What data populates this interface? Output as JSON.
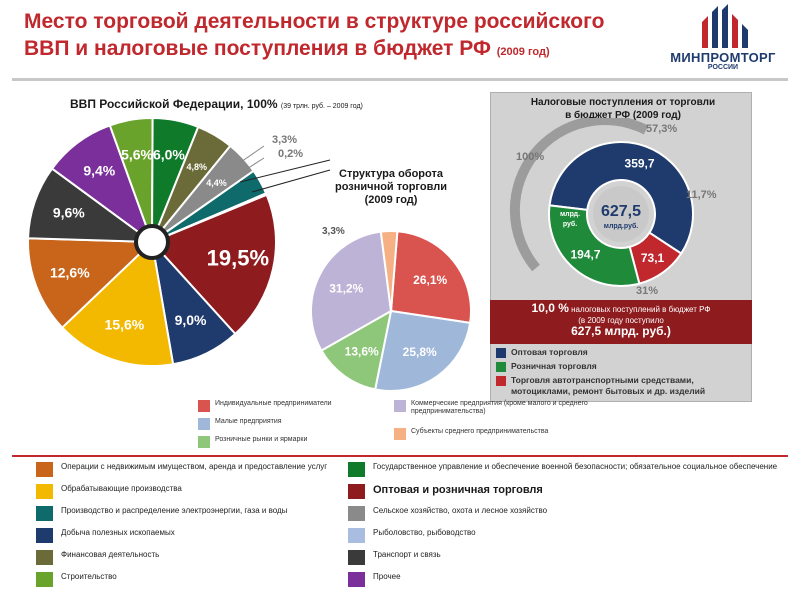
{
  "header": {
    "title_line1": "Место торговой деятельности в структуре российского",
    "title_line2": "ВВП и налоговые поступления в бюджет РФ",
    "title_year": "(2009 год)",
    "logo_text": "МИНПРОМТОРГ",
    "logo_sub": "РОССИИ"
  },
  "colors": {
    "title": "#c0282d",
    "gdp_trade": "#8e1b1e",
    "wholesale": "#1f3b6e",
    "retail": "#1f8a3a",
    "auto": "#c0282d"
  },
  "gdp_title": {
    "main": "ВВП Российской Федерации, 100%",
    "note": "(39 трлн. руб. – 2009 год)"
  },
  "retail_title": {
    "line1": "Структура оборота",
    "line2": "розничной торговли",
    "line3": "(2009 год)"
  },
  "tax": {
    "title_line1": "Налоговые поступления от торговли",
    "title_line2": "в бюджет РФ (2009 год)",
    "center_value": "627,5",
    "center_unit": "млрд.руб.",
    "side_unit_line1": "млрд.",
    "side_unit_line2": "руб.",
    "label_100": "100%",
    "label_573": "57,3%",
    "label_117": "11,7%",
    "label_31": "31%",
    "banner_big": "10,0 %",
    "banner_line1": "налоговых поступлений в бюджет РФ",
    "banner_line2": "(в 2009 году поступило",
    "banner_line3": "627,5 млрд. руб.)",
    "legend": [
      {
        "label": "Оптовая торговля",
        "color": "#1f3b6e"
      },
      {
        "label": "Розничная торговля",
        "color": "#1f8a3a"
      },
      {
        "label": "Торговля автотранспортными средствами, мотоциклами, ремонт бытовых и др. изделий",
        "color": "#c0282d"
      }
    ]
  },
  "retail_legend": [
    {
      "label": "Индивидуальные предприниматели",
      "color": "#d9534f"
    },
    {
      "label": "Малые предприятия",
      "color": "#9fb7d9"
    },
    {
      "label": "Розничные рынки и ярмарки",
      "color": "#8fc77a"
    },
    {
      "label": "Коммерческие предприятия (кроме малого и среднего предпринимательства)",
      "color": "#bdb3d6"
    },
    {
      "label": "Субъекты среднего предпринимательства",
      "color": "#f5b183"
    }
  ],
  "sector_legend": [
    {
      "label": "Операции с недвижимым имуществом, аренда и предоставление услуг",
      "color": "#c8651b"
    },
    {
      "label": "Обрабатывающие производства",
      "color": "#f3b800"
    },
    {
      "label": "Производство и распределение электроэнергии, газа и воды",
      "color": "#0f6b6b"
    },
    {
      "label": "Добыча полезных ископаемых",
      "color": "#1f3b6e"
    },
    {
      "label": "Финансовая деятельность",
      "color": "#6b6b3a"
    },
    {
      "label": "Строительство",
      "color": "#6aa32b"
    },
    {
      "label": "Государственное управление и обеспечение военной безопасности; обязательное социальное обеспечение",
      "color": "#0f7a2a"
    },
    {
      "label": "Оптовая и розничная торговля",
      "color": "#8e1b1e"
    },
    {
      "label": "Сельское хозяйство, охота и лесное хозяйство",
      "color": "#8a8a8a"
    },
    {
      "label": "Рыболовство, рыбоводство",
      "color": "#a9bde0"
    },
    {
      "label": "Транспорт и связь",
      "color": "#3a3a3a"
    },
    {
      "label": "Прочее",
      "color": "#7a2f9a"
    }
  ],
  "chart_data": [
    {
      "type": "pie",
      "title": "ВВП Российской Федерации, 100%",
      "slices": [
        {
          "label": "19,5%",
          "value": 19.5,
          "sector": "Оптовая и розничная торговля",
          "color": "#8e1b1e"
        },
        {
          "label": "9,0%",
          "value": 9.0,
          "sector": "Добыча полезных ископаемых",
          "color": "#1f3b6e"
        },
        {
          "label": "15,6%",
          "value": 15.6,
          "sector": "Обрабатывающие производства",
          "color": "#f3b800"
        },
        {
          "label": "12,6%",
          "value": 12.6,
          "sector": "Операции с недвижимым имуществом, аренда и предоставление услуг",
          "color": "#c8651b"
        },
        {
          "label": "9,6%",
          "value": 9.6,
          "sector": "Транспорт и связь",
          "color": "#3a3a3a"
        },
        {
          "label": "9,4%",
          "value": 9.4,
          "sector": "Прочее",
          "color": "#7a2f9a"
        },
        {
          "label": "5,6%",
          "value": 5.6,
          "sector": "Строительство",
          "color": "#6aa32b"
        },
        {
          "label": "6,0%",
          "value": 6.0,
          "sector": "Государственное управление и обеспечение военной безопасности; обязательное социальное обеспечение",
          "color": "#0f7a2a"
        },
        {
          "label": "4,8%",
          "value": 4.8,
          "sector": "Финансовая деятельность",
          "color": "#6b6b3a"
        },
        {
          "label": "4,4%",
          "value": 4.4,
          "sector": "Сельское хозяйство, охота и лесное хозяйство",
          "color": "#8a8a8a"
        },
        {
          "label": "3,3%",
          "value": 3.3,
          "sector": "Производство и распределение электроэнергии, газа и воды",
          "color": "#0f6b6b"
        },
        {
          "label": "0,2%",
          "value": 0.2,
          "sector": "Рыболовство, рыбоводство",
          "color": "#a9bde0"
        }
      ]
    },
    {
      "type": "pie",
      "title": "Структура оборота розничной торговли (2009 год)",
      "slices": [
        {
          "label": "26,1%",
          "value": 26.1,
          "sector": "Индивидуальные предприниматели",
          "color": "#d9534f"
        },
        {
          "label": "25,8%",
          "value": 25.8,
          "sector": "Малые предприятия",
          "color": "#9fb7d9"
        },
        {
          "label": "13,6%",
          "value": 13.6,
          "sector": "Розничные рынки и ярмарки",
          "color": "#8fc77a"
        },
        {
          "label": "31,2%",
          "value": 31.2,
          "sector": "Коммерческие предприятия (кроме малого и среднего предпринимательства)",
          "color": "#bdb3d6"
        },
        {
          "label": "3,3%",
          "value": 3.3,
          "sector": "Субъекты среднего предпринимательства",
          "color": "#f5b183"
        }
      ]
    },
    {
      "type": "pie",
      "title": "Налоговые поступления от торговли в бюджет РФ (2009 год)",
      "unit": "млрд. руб.",
      "slices": [
        {
          "label": "359,7",
          "value": 359.7,
          "sector": "Оптовая торговля",
          "color": "#1f3b6e"
        },
        {
          "label": "73,1",
          "value": 73.1,
          "sector": "Торговля автотранспортными средствами, мотоциклами, ремонт бытовых и др. изделий",
          "color": "#c0282d"
        },
        {
          "label": "194,7",
          "value": 194.7,
          "sector": "Розничная торговля",
          "color": "#1f8a3a"
        }
      ]
    }
  ]
}
